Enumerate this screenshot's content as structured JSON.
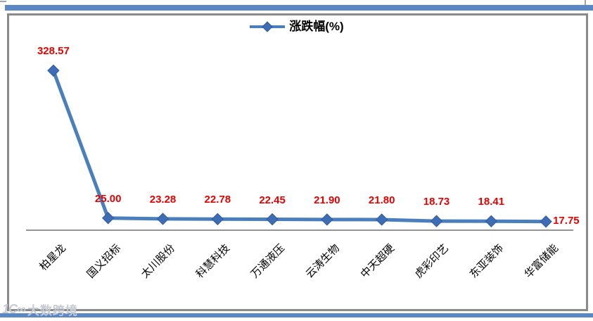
{
  "legend": {
    "label": "涨跌幅(%)"
  },
  "chart_data": {
    "type": "line",
    "series": [
      {
        "name": "涨跌幅(%)",
        "values": [
          328.57,
          25.0,
          23.28,
          22.78,
          22.45,
          21.9,
          21.8,
          18.73,
          18.41,
          17.75
        ]
      }
    ],
    "categories": [
      "柏星龙",
      "国义招标",
      "太川股份",
      "科慧科技",
      "万通液压",
      "云涛生物",
      "中天超硬",
      "虎彩印艺",
      "东亚装饰",
      "华富储能"
    ],
    "value_labels": [
      "328.57",
      "25.00",
      "23.28",
      "22.78",
      "22.45",
      "21.90",
      "21.80",
      "18.73",
      "18.41",
      "17.75"
    ],
    "title": "",
    "xlabel": "",
    "ylabel": "",
    "ylim": [
      0,
      350
    ],
    "grid": false,
    "legend_position": "top-center",
    "marker": "diamond",
    "colors": {
      "series_line": "#4a7ebd",
      "series_marker": "#3e6db5",
      "series_marker_edge": "#2f5a9b",
      "data_label": "#e60000",
      "axis_line": "#707070",
      "frame_border": "#8a8a8a",
      "page_bars": "#5b88c5"
    }
  },
  "watermark": {
    "logo": "1C∞",
    "text": "大数跨境"
  }
}
